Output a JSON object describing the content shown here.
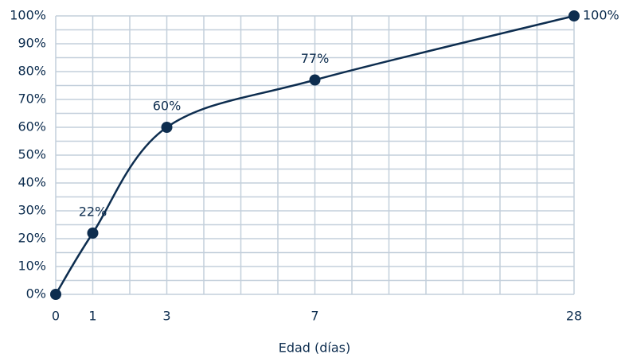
{
  "chart_data": {
    "type": "line",
    "x_label": "Edad (días)",
    "x": [
      0,
      1,
      3,
      7,
      28
    ],
    "values": [
      0,
      22,
      60,
      77,
      100
    ],
    "value_labels": [
      null,
      "22%",
      "60%",
      "77%",
      "100%"
    ],
    "color": "#0d2d4f",
    "xlim": [
      0,
      28
    ],
    "xticks": [
      0,
      1,
      3,
      7,
      28
    ],
    "xgrid": [
      0,
      1,
      2,
      3,
      4,
      5,
      6,
      7,
      10,
      13,
      16,
      19,
      22,
      25,
      28
    ],
    "ylim": [
      0,
      100
    ],
    "yticks": [
      {
        "value": 0,
        "label": "0%"
      },
      {
        "value": 10,
        "label": "10%"
      },
      {
        "value": 20,
        "label": "20%"
      },
      {
        "value": 30,
        "label": "30%"
      },
      {
        "value": 40,
        "label": "40%"
      },
      {
        "value": 50,
        "label": "50%"
      },
      {
        "value": 60,
        "label": "60%"
      },
      {
        "value": 70,
        "label": "70%"
      },
      {
        "value": 80,
        "label": "80%"
      },
      {
        "value": 90,
        "label": "90%"
      },
      {
        "value": 100,
        "label": "100%"
      }
    ],
    "ygrid": [
      0,
      5,
      10,
      15,
      20,
      25,
      30,
      35,
      40,
      45,
      50,
      55,
      60,
      65,
      70,
      75,
      80,
      85,
      90,
      95,
      100
    ],
    "grid": true
  }
}
